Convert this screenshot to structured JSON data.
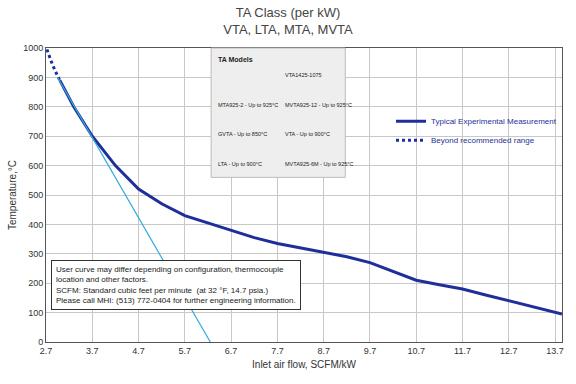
{
  "chart_data": {
    "type": "line",
    "title": [
      "TA Class (per kW)",
      "VTA, LTA, MTA, MVTA"
    ],
    "x_label": "Inlet air flow, SCFM/kW",
    "y_label": "Temperature,°C",
    "xlim": [
      2.7,
      13.85
    ],
    "xticks": [
      2.7,
      3.7,
      4.7,
      5.7,
      6.7,
      7.7,
      8.7,
      9.7,
      10.7,
      11.7,
      12.7,
      13.7
    ],
    "ylim": [
      0,
      1000
    ],
    "yticks": [
      0,
      100,
      200,
      300,
      400,
      500,
      600,
      700,
      800,
      900,
      1000
    ],
    "grid": true,
    "legend": "upper right",
    "series": [
      {
        "name": "Typical Experimental Measurement",
        "color": "#1f2f9a",
        "line_style": "solid",
        "x": [
          3.0,
          3.3,
          3.7,
          4.2,
          4.7,
          5.2,
          5.7,
          6.2,
          6.7,
          7.2,
          7.7,
          8.2,
          8.7,
          9.2,
          9.7,
          10.2,
          10.7,
          11.2,
          11.7,
          12.2,
          12.7,
          13.2,
          13.7,
          13.85
        ],
        "values": [
          890,
          800,
          700,
          600,
          520,
          470,
          430,
          405,
          380,
          355,
          335,
          320,
          305,
          290,
          270,
          240,
          210,
          195,
          180,
          160,
          140,
          120,
          100,
          95
        ]
      },
      {
        "name": "Beyond recommended range",
        "color": "#1f2f9a",
        "line_style": "dot",
        "x": [
          2.72,
          2.75,
          2.8,
          2.85,
          2.9,
          2.95,
          3.0
        ],
        "values": [
          995,
          980,
          960,
          940,
          920,
          905,
          890
        ]
      },
      {
        "color": "#33aadd",
        "line_style": "solid",
        "x": [
          2.95,
          6.25
        ],
        "values": [
          900,
          0
        ]
      }
    ],
    "note": [
      "User curve may differ depending on configuration, thermocouple",
      "location and other factors.",
      "SCFM: Standard cubic feet per minute  (at 32 °F, 14.7 psia.)",
      "Please call MHI: (513) 772-0404 for further engineering information."
    ],
    "inset": {
      "title": "TA Models",
      "labels": [
        "VTA1425-1075",
        "MTA925-2 - Up to 925°C",
        "MVTA925-12 - Up to 925°C",
        "GVTA - Up to 850°C",
        "VTA - Up to 900°C",
        "LTA - Up to 900°C",
        "MVTA925-6M - Up to 925°C"
      ]
    }
  }
}
